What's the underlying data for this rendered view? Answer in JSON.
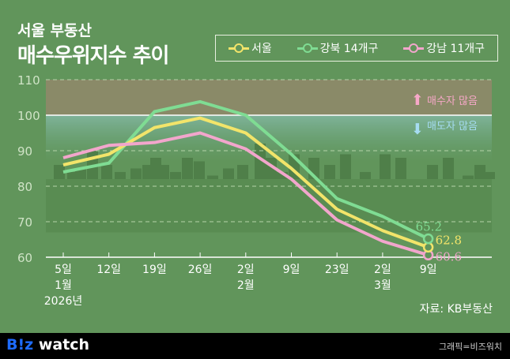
{
  "header": {
    "title_line1": "서울 부동산",
    "title_line2": "매수우위지수 추이"
  },
  "legend": [
    {
      "label": "서울",
      "color": "#f2e46a"
    },
    {
      "label": "강북 14개구",
      "color": "#7fdc93"
    },
    {
      "label": "강남 11개구",
      "color": "#f2a6cc"
    }
  ],
  "zones": {
    "above": "매수자 많음",
    "below": "매도자 많음",
    "above_color": "#f7a8c8",
    "below_color": "#a6dcf2"
  },
  "source": "자료: KB부동산",
  "footer": {
    "logo_b": "B!z",
    "logo_rest": " watch",
    "credit": "그래픽=비즈워치"
  },
  "chart_data": {
    "type": "line",
    "title": "서울 부동산 매수우위지수 추이",
    "x": [
      "5일",
      "12일",
      "19일",
      "26일",
      "2일",
      "9일",
      "23일",
      "2일",
      "9일"
    ],
    "x_sub": [
      "1월",
      "",
      "",
      "",
      "2월",
      "",
      "",
      "3월",
      ""
    ],
    "x_year": "2026년",
    "ylim": [
      60,
      110
    ],
    "yticks": [
      60,
      70,
      80,
      90,
      100,
      110
    ],
    "grid": true,
    "legend_position": "top-right",
    "series": [
      {
        "name": "서울",
        "color": "#f2e46a",
        "values": [
          86,
          89,
          96.5,
          99.2,
          95,
          85,
          73.5,
          67.5,
          62.8
        ],
        "end_label": "62.8"
      },
      {
        "name": "강북 14개구",
        "color": "#7fdc93",
        "values": [
          84,
          86.5,
          101,
          103.8,
          100,
          89,
          76.5,
          71.5,
          65.2
        ],
        "end_label": "65.2"
      },
      {
        "name": "강남 11개구",
        "color": "#f2a6cc",
        "values": [
          88,
          91.5,
          92.3,
          95,
          90.5,
          82,
          70.5,
          64.5,
          60.6
        ],
        "end_label": "60.6"
      }
    ]
  }
}
